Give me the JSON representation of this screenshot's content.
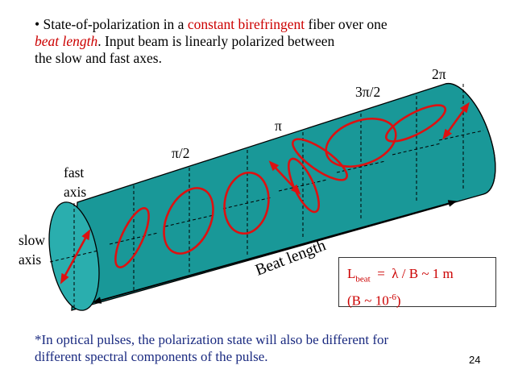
{
  "bullet": {
    "marker": "•",
    "part1": "State-of-polarization in a ",
    "highlight1": "constant birefringent",
    "part2": " fiber over one",
    "highlight2": "beat length",
    "part3": ".  Input beam is linearly polarized between",
    "line3": "the slow and fast axes."
  },
  "labels": {
    "fast": "fast",
    "fast_axis": "axis",
    "slow": "slow",
    "slow_axis": "axis",
    "phase_pi_half": "π/2",
    "phase_pi": "π",
    "phase_three_pi_half": "3π/2",
    "phase_two_pi": "2π",
    "beat_length": "Beat length"
  },
  "formula": {
    "L": "L",
    "beat_sub": "beat",
    "rest": "  =  λ / B ~ 1 m",
    "line2_open": "(B ~ 10",
    "exp": "-6",
    "line2_close": ")"
  },
  "footnote": {
    "line1": "*In optical pulses, the polarization state will also be different for",
    "line2": "different spectral components of the pulse."
  },
  "page_number": "24",
  "colors": {
    "fiber": "#199898",
    "fiber_end": "#2aaeae",
    "polarization": "#dd1111",
    "accent_text": "#cc0000",
    "footnote_text": "#1a2a80"
  }
}
